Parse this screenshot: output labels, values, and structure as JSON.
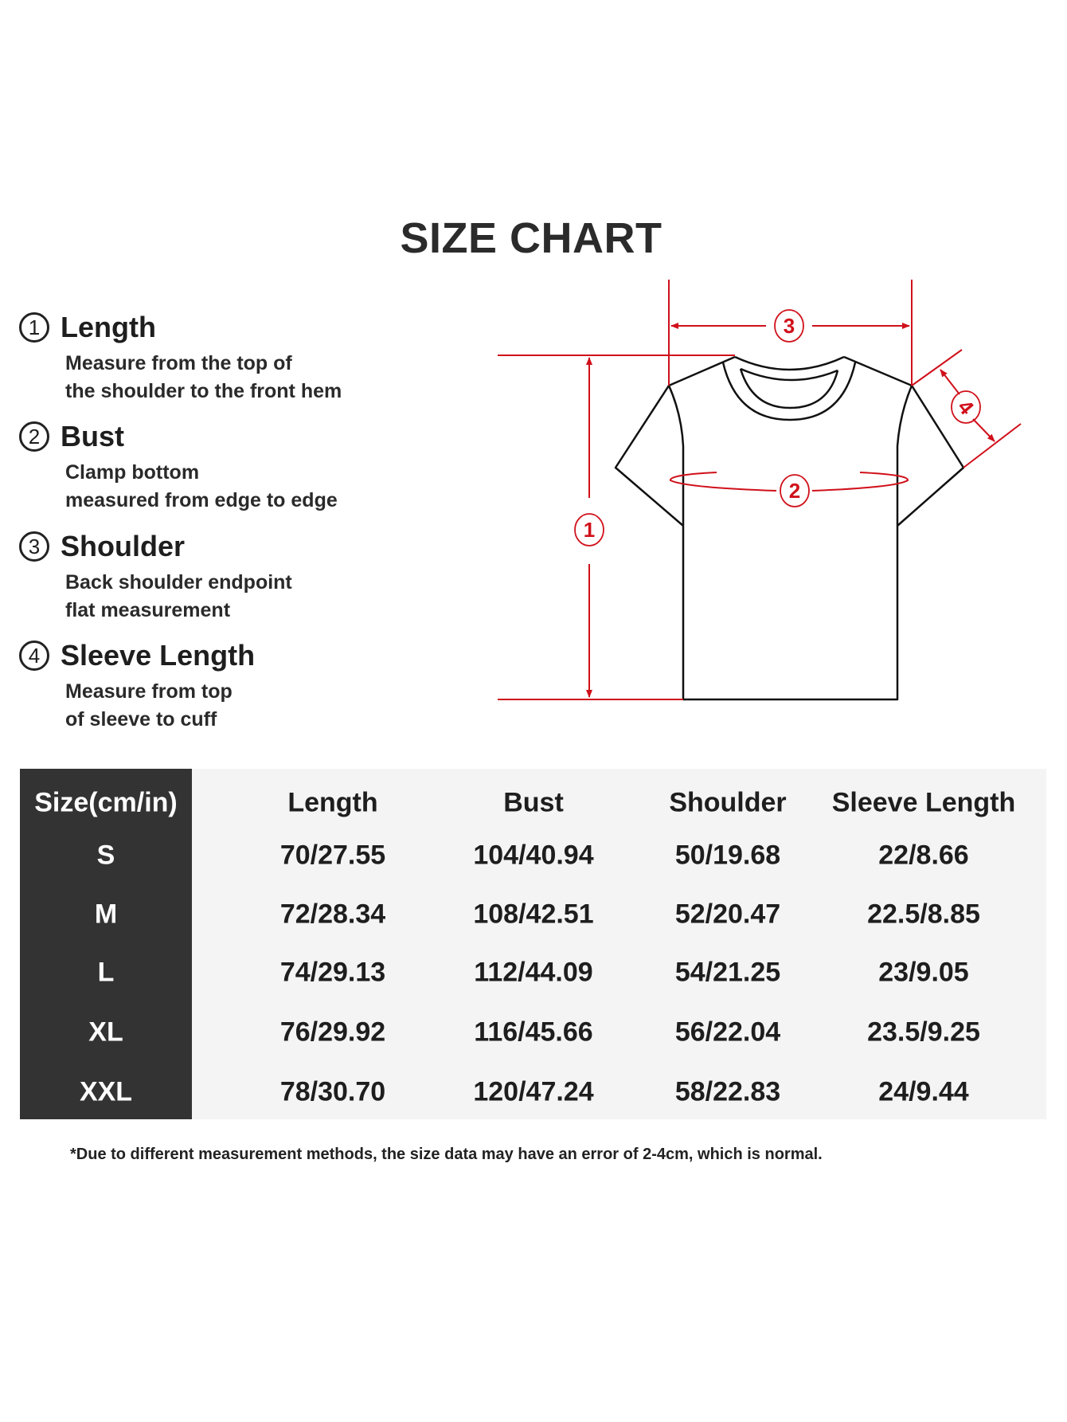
{
  "title": "SIZE CHART",
  "legend": [
    {
      "num": "1",
      "label": "Length",
      "desc": [
        "Measure from the top of",
        "the shoulder to the front hem"
      ]
    },
    {
      "num": "2",
      "label": "Bust",
      "desc": [
        "Clamp bottom",
        "measured from edge to edge"
      ]
    },
    {
      "num": "3",
      "label": "Shoulder",
      "desc": [
        "Back shoulder endpoint",
        "flat measurement"
      ]
    },
    {
      "num": "4",
      "label": "Sleeve Length",
      "desc": [
        "Measure from top",
        "of sleeve to cuff"
      ]
    }
  ],
  "diagram": {
    "markers": [
      "1",
      "2",
      "3",
      "4"
    ],
    "accent_color": "#d0101a",
    "outline_color": "#111111"
  },
  "table": {
    "headers": [
      "Size(cm/in)",
      "Length",
      "Bust",
      "Shoulder",
      "Sleeve Length"
    ],
    "rows": [
      [
        "S",
        "70/27.55",
        "104/40.94",
        "50/19.68",
        "22/8.66"
      ],
      [
        "M",
        "72/28.34",
        "108/42.51",
        "52/20.47",
        "22.5/8.85"
      ],
      [
        "L",
        "74/29.13",
        "112/44.09",
        "54/21.25",
        "23/9.05"
      ],
      [
        "XL",
        "76/29.92",
        "116/45.66",
        "56/22.04",
        "23.5/9.25"
      ],
      [
        "XXL",
        "78/30.70",
        "120/47.24",
        "58/22.83",
        "24/9.44"
      ]
    ],
    "header_bg": "#333333",
    "body_bg": "#f4f4f4"
  },
  "footnote": "*Due to different measurement methods, the size data may have an error of 2-4cm, which is normal."
}
